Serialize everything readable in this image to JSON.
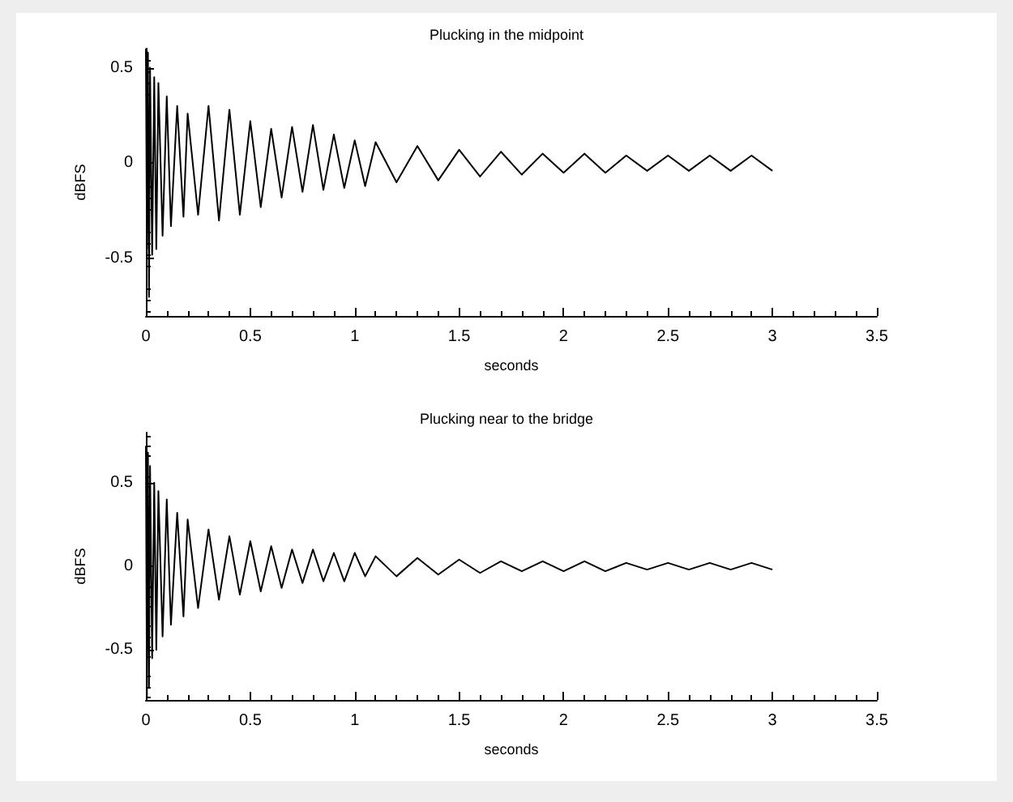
{
  "chart_data": [
    {
      "type": "line",
      "title": "Plucking in the midpoint",
      "xlabel": "seconds",
      "ylabel": "dBFS",
      "xlim": [
        0,
        3.5
      ],
      "xticks": [
        0,
        0.5,
        1,
        1.5,
        2,
        2.5,
        3,
        3.5
      ],
      "ylim": [
        -0.8,
        0.6
      ],
      "yticks": [
        -0.5,
        0,
        0.5
      ],
      "grid": false,
      "marker": "none",
      "line_style": "solid",
      "series": [
        {
          "color": "#000000",
          "x": [
            0,
            0.005,
            0.01,
            0.015,
            0.02,
            0.03,
            0.04,
            0.05,
            0.06,
            0.08,
            0.1,
            0.12,
            0.15,
            0.18,
            0.2,
            0.25,
            0.3,
            0.35,
            0.4,
            0.45,
            0.5,
            0.55,
            0.6,
            0.65,
            0.7,
            0.75,
            0.8,
            0.85,
            0.9,
            0.95,
            1.0,
            1.05,
            1.1,
            1.2,
            1.3,
            1.4,
            1.5,
            1.6,
            1.7,
            1.8,
            1.9,
            2.0,
            2.1,
            2.2,
            2.3,
            2.4,
            2.5,
            2.6,
            2.7,
            2.8,
            2.9,
            3.0
          ],
          "values": [
            0.6,
            -0.45,
            0.58,
            -0.7,
            0.5,
            -0.48,
            0.45,
            -0.45,
            0.42,
            -0.38,
            0.35,
            -0.33,
            0.3,
            -0.28,
            0.26,
            -0.27,
            0.3,
            -0.3,
            0.28,
            -0.27,
            0.22,
            -0.23,
            0.18,
            -0.18,
            0.19,
            -0.15,
            0.2,
            -0.14,
            0.15,
            -0.13,
            0.12,
            -0.12,
            0.11,
            -0.1,
            0.09,
            -0.09,
            0.07,
            -0.07,
            0.06,
            -0.06,
            0.05,
            -0.05,
            0.05,
            -0.05,
            0.04,
            -0.04,
            0.04,
            -0.04,
            0.04,
            -0.04,
            0.04,
            -0.04
          ]
        }
      ]
    },
    {
      "type": "line",
      "title": "Plucking near to the bridge",
      "xlabel": "seconds",
      "ylabel": "dBFS",
      "xlim": [
        0,
        3.5
      ],
      "xticks": [
        0,
        0.5,
        1,
        1.5,
        2,
        2.5,
        3,
        3.5
      ],
      "ylim": [
        -0.8,
        0.8
      ],
      "yticks": [
        -0.5,
        0,
        0.5
      ],
      "grid": false,
      "marker": "none",
      "line_style": "solid",
      "series": [
        {
          "color": "#000000",
          "x": [
            0,
            0.005,
            0.01,
            0.015,
            0.02,
            0.03,
            0.04,
            0.05,
            0.06,
            0.08,
            0.1,
            0.12,
            0.15,
            0.18,
            0.2,
            0.25,
            0.3,
            0.35,
            0.4,
            0.45,
            0.5,
            0.55,
            0.6,
            0.65,
            0.7,
            0.75,
            0.8,
            0.85,
            0.9,
            0.95,
            1.0,
            1.05,
            1.1,
            1.2,
            1.3,
            1.4,
            1.5,
            1.6,
            1.7,
            1.8,
            1.9,
            2.0,
            2.1,
            2.2,
            2.3,
            2.4,
            2.5,
            2.6,
            2.7,
            2.8,
            2.9,
            3.0
          ],
          "values": [
            0.72,
            -0.78,
            0.68,
            -0.72,
            0.6,
            -0.55,
            0.5,
            -0.5,
            0.45,
            -0.42,
            0.4,
            -0.35,
            0.32,
            -0.3,
            0.28,
            -0.25,
            0.22,
            -0.2,
            0.18,
            -0.17,
            0.15,
            -0.15,
            0.12,
            -0.13,
            0.1,
            -0.1,
            0.1,
            -0.09,
            0.08,
            -0.09,
            0.08,
            -0.06,
            0.06,
            -0.06,
            0.05,
            -0.05,
            0.04,
            -0.04,
            0.03,
            -0.03,
            0.03,
            -0.03,
            0.03,
            -0.03,
            0.02,
            -0.02,
            0.02,
            -0.02,
            0.02,
            -0.02,
            0.02,
            -0.02
          ]
        }
      ]
    }
  ]
}
